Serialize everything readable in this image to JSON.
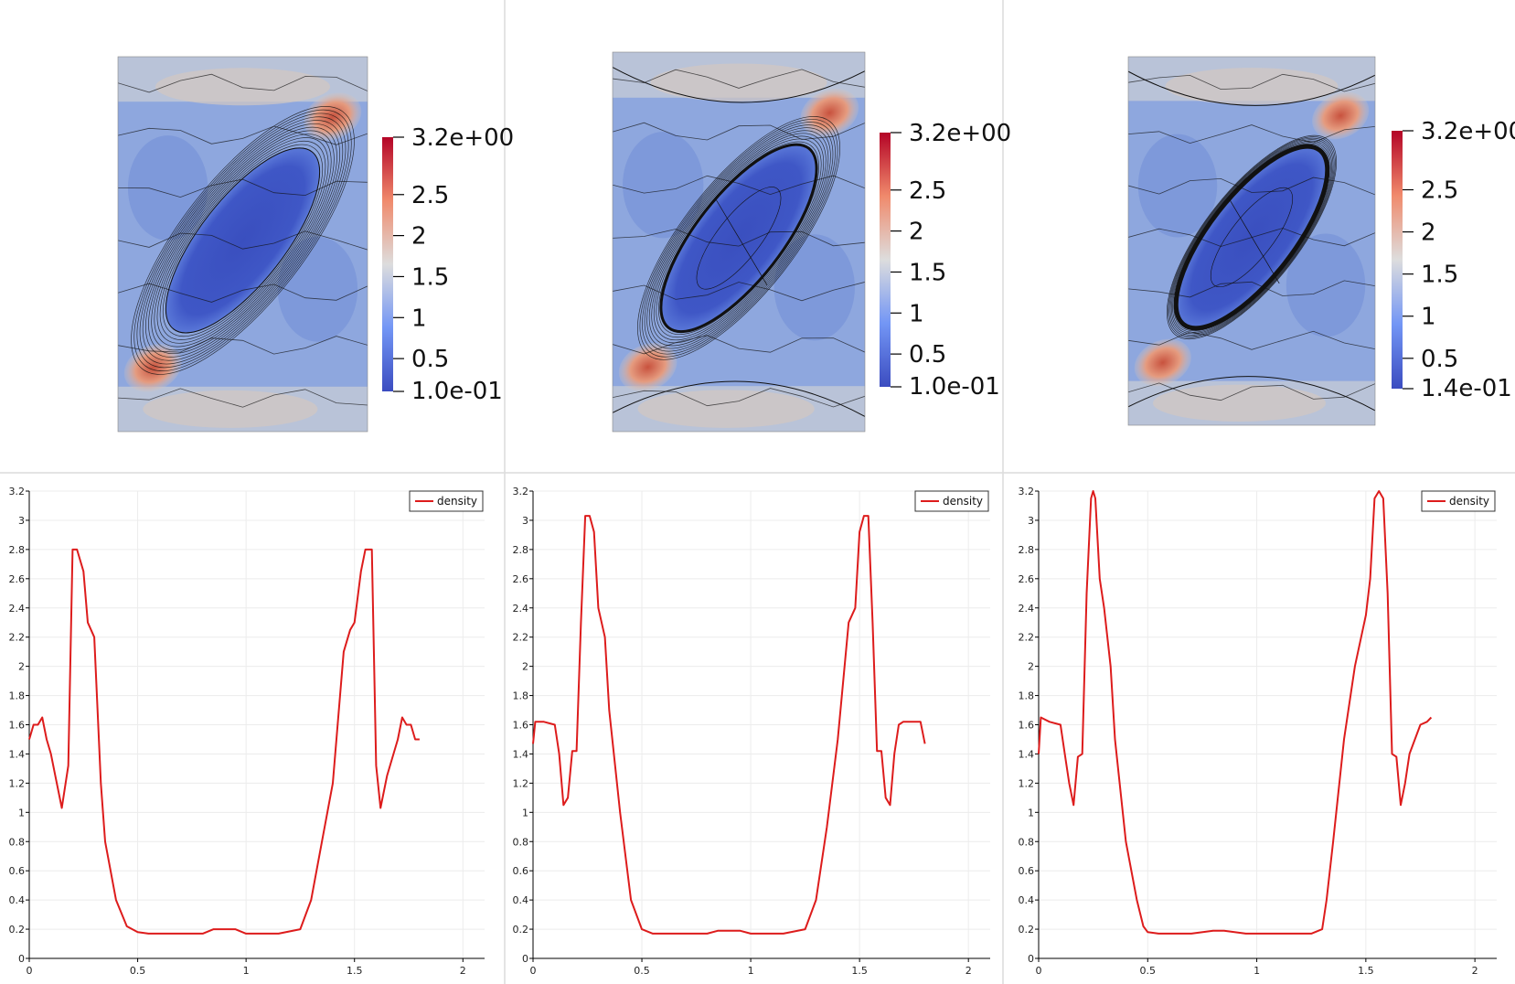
{
  "colors": {
    "background": "#ffffff",
    "divider": "#dcdcdc",
    "line": "#dd1c1c",
    "axis": "#000000",
    "grid": "#ececec",
    "cmap_low": "#3b4cc0",
    "cmap_mid": "#dddddd",
    "cmap_high": "#b40426",
    "contour": "#111111"
  },
  "colorbars": [
    {
      "max_label": "3.2e+00",
      "min_label": "1.0e-01",
      "min": 0.1,
      "max": 3.2,
      "ticks": [
        "2.5",
        "2",
        "1.5",
        "1",
        "0.5"
      ],
      "tick_values": [
        2.5,
        2,
        1.5,
        1,
        0.5
      ]
    },
    {
      "max_label": "3.2e+00",
      "min_label": "1.0e-01",
      "min": 0.1,
      "max": 3.2,
      "ticks": [
        "2.5",
        "2",
        "1.5",
        "1",
        "0.5"
      ],
      "tick_values": [
        2.5,
        2,
        1.5,
        1,
        0.5
      ]
    },
    {
      "max_label": "3.2e+00",
      "min_label": "1.4e-01",
      "min": 0.14,
      "max": 3.2,
      "ticks": [
        "2.5",
        "2",
        "1.5",
        "1",
        "0.5"
      ],
      "tick_values": [
        2.5,
        2,
        1.5,
        1,
        0.5
      ]
    }
  ],
  "chart_data": [
    {
      "type": "line",
      "legend": "top-right",
      "grid": true,
      "xlim": [
        0,
        2.1
      ],
      "ylim": [
        0,
        3.2
      ],
      "x_ticks": [
        "0",
        "0.5",
        "1",
        "1.5",
        "2"
      ],
      "y_ticks": [
        "0",
        "0.2",
        "0.4",
        "0.6",
        "0.8",
        "1",
        "1.2",
        "1.4",
        "1.6",
        "1.8",
        "2",
        "2.2",
        "2.4",
        "2.6",
        "2.8",
        "3",
        "3.2"
      ],
      "series": [
        {
          "name": "density",
          "x": [
            0.0,
            0.02,
            0.04,
            0.06,
            0.08,
            0.1,
            0.12,
            0.15,
            0.18,
            0.2,
            0.22,
            0.25,
            0.27,
            0.3,
            0.33,
            0.35,
            0.4,
            0.45,
            0.5,
            0.55,
            0.6,
            0.7,
            0.8,
            0.85,
            0.95,
            1.0,
            1.05,
            1.15,
            1.25,
            1.3,
            1.35,
            1.4,
            1.45,
            1.48,
            1.5,
            1.53,
            1.55,
            1.58,
            1.6,
            1.62,
            1.65,
            1.68,
            1.7,
            1.72,
            1.74,
            1.76,
            1.78,
            1.8
          ],
          "values": [
            1.5,
            1.6,
            1.6,
            1.65,
            1.5,
            1.4,
            1.25,
            1.03,
            1.32,
            2.8,
            2.8,
            2.65,
            2.3,
            2.2,
            1.2,
            0.8,
            0.4,
            0.22,
            0.18,
            0.17,
            0.17,
            0.17,
            0.17,
            0.2,
            0.2,
            0.17,
            0.17,
            0.17,
            0.2,
            0.4,
            0.8,
            1.2,
            2.1,
            2.25,
            2.3,
            2.65,
            2.8,
            2.8,
            1.32,
            1.03,
            1.25,
            1.4,
            1.5,
            1.65,
            1.6,
            1.6,
            1.5,
            1.5
          ]
        }
      ]
    },
    {
      "type": "line",
      "legend": "top-right",
      "grid": true,
      "xlim": [
        0,
        2.1
      ],
      "ylim": [
        0,
        3.2
      ],
      "x_ticks": [
        "0",
        "0.5",
        "1",
        "1.5",
        "2"
      ],
      "y_ticks": [
        "0",
        "0.2",
        "0.4",
        "0.6",
        "0.8",
        "1",
        "1.2",
        "1.4",
        "1.6",
        "1.8",
        "2",
        "2.2",
        "2.4",
        "2.6",
        "2.8",
        "3",
        "3.2"
      ],
      "series": [
        {
          "name": "density",
          "x": [
            0.0,
            0.01,
            0.05,
            0.1,
            0.12,
            0.14,
            0.16,
            0.18,
            0.2,
            0.22,
            0.24,
            0.26,
            0.28,
            0.3,
            0.33,
            0.35,
            0.4,
            0.45,
            0.5,
            0.55,
            0.6,
            0.7,
            0.8,
            0.85,
            0.95,
            1.0,
            1.05,
            1.15,
            1.25,
            1.3,
            1.35,
            1.4,
            1.45,
            1.48,
            1.5,
            1.52,
            1.54,
            1.56,
            1.58,
            1.6,
            1.62,
            1.64,
            1.66,
            1.68,
            1.7,
            1.75,
            1.78,
            1.8
          ],
          "values": [
            1.47,
            1.62,
            1.62,
            1.6,
            1.4,
            1.05,
            1.1,
            1.42,
            1.42,
            2.3,
            3.03,
            3.03,
            2.92,
            2.4,
            2.2,
            1.7,
            1.0,
            0.4,
            0.2,
            0.17,
            0.17,
            0.17,
            0.17,
            0.19,
            0.19,
            0.17,
            0.17,
            0.17,
            0.2,
            0.4,
            0.9,
            1.5,
            2.3,
            2.4,
            2.92,
            3.03,
            3.03,
            2.3,
            1.42,
            1.42,
            1.1,
            1.05,
            1.4,
            1.6,
            1.62,
            1.62,
            1.62,
            1.47
          ]
        }
      ]
    },
    {
      "type": "line",
      "legend": "top-right",
      "grid": true,
      "xlim": [
        0,
        2.1
      ],
      "ylim": [
        0,
        3.2
      ],
      "x_ticks": [
        "0",
        "0.5",
        "1",
        "1.5",
        "2"
      ],
      "y_ticks": [
        "0",
        "0.2",
        "0.4",
        "0.6",
        "0.8",
        "1",
        "1.2",
        "1.4",
        "1.6",
        "1.8",
        "2",
        "2.2",
        "2.4",
        "2.6",
        "2.8",
        "3",
        "3.2"
      ],
      "series": [
        {
          "name": "density",
          "x": [
            0.0,
            0.01,
            0.05,
            0.1,
            0.12,
            0.14,
            0.16,
            0.18,
            0.2,
            0.22,
            0.24,
            0.25,
            0.26,
            0.28,
            0.3,
            0.33,
            0.35,
            0.4,
            0.45,
            0.48,
            0.5,
            0.55,
            0.6,
            0.7,
            0.8,
            0.85,
            0.95,
            1.0,
            1.05,
            1.15,
            1.25,
            1.3,
            1.32,
            1.35,
            1.4,
            1.45,
            1.5,
            1.52,
            1.54,
            1.56,
            1.58,
            1.6,
            1.62,
            1.64,
            1.66,
            1.68,
            1.7,
            1.75,
            1.78,
            1.8
          ],
          "values": [
            1.4,
            1.65,
            1.62,
            1.6,
            1.4,
            1.2,
            1.05,
            1.38,
            1.4,
            2.5,
            3.15,
            3.2,
            3.15,
            2.6,
            2.4,
            2.0,
            1.5,
            0.8,
            0.4,
            0.22,
            0.18,
            0.17,
            0.17,
            0.17,
            0.19,
            0.19,
            0.17,
            0.17,
            0.17,
            0.17,
            0.17,
            0.2,
            0.4,
            0.8,
            1.5,
            2.0,
            2.35,
            2.6,
            3.15,
            3.2,
            3.15,
            2.5,
            1.4,
            1.38,
            1.05,
            1.2,
            1.4,
            1.6,
            1.62,
            1.65
          ]
        }
      ]
    }
  ]
}
